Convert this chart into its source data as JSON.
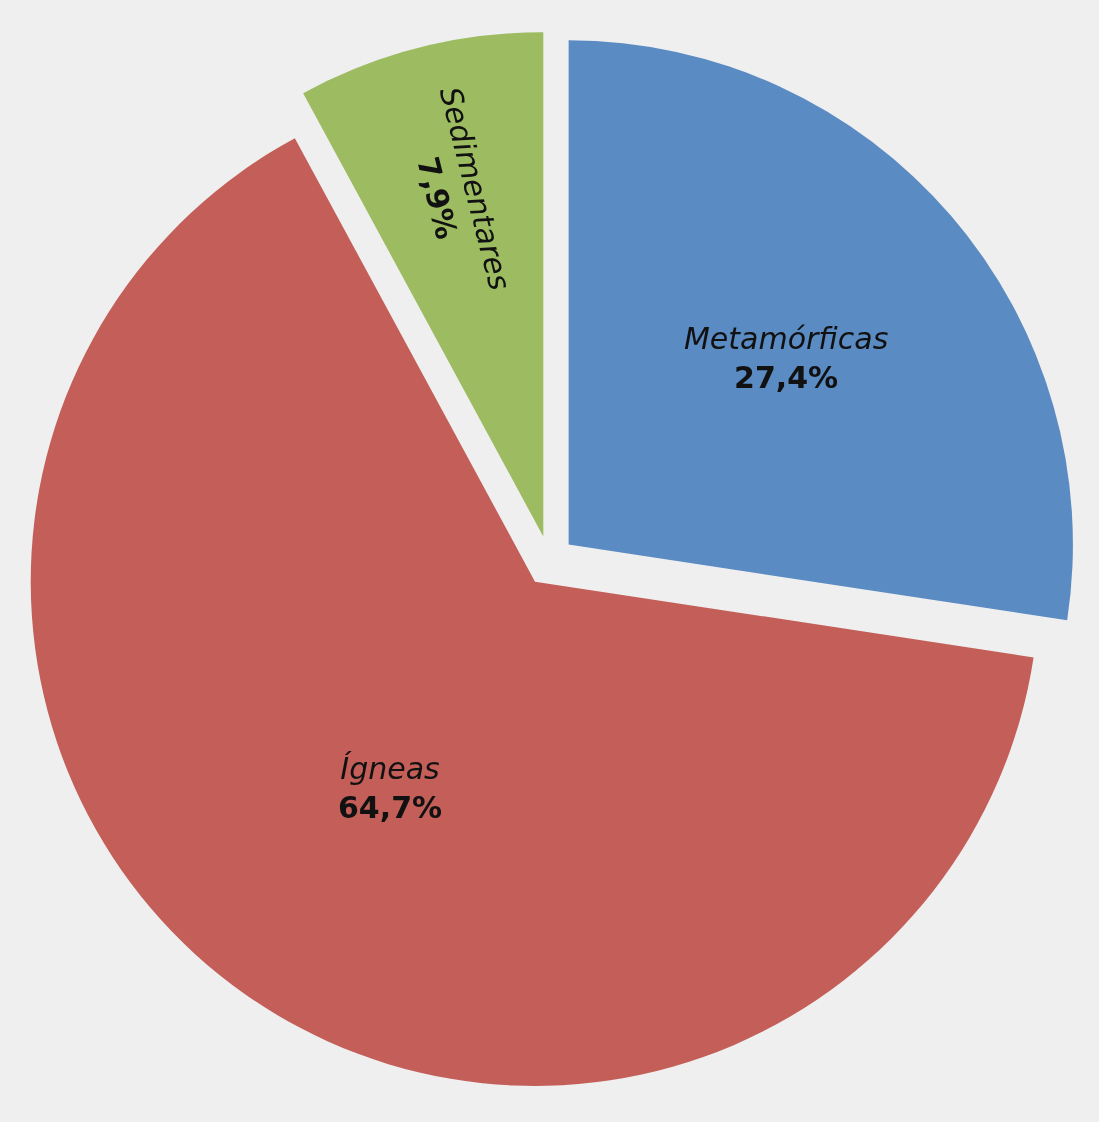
{
  "chart_data": {
    "type": "pie",
    "categories": [
      "Metamórficas",
      "Ígneas",
      "Sedimentares"
    ],
    "values": [
      27.4,
      64.7,
      7.9
    ],
    "value_labels": [
      "27,4%",
      "64,7%",
      "7,9%"
    ],
    "colors": [
      "#5a8bc2",
      "#c35f58",
      "#9dbb61"
    ],
    "legend": false
  }
}
